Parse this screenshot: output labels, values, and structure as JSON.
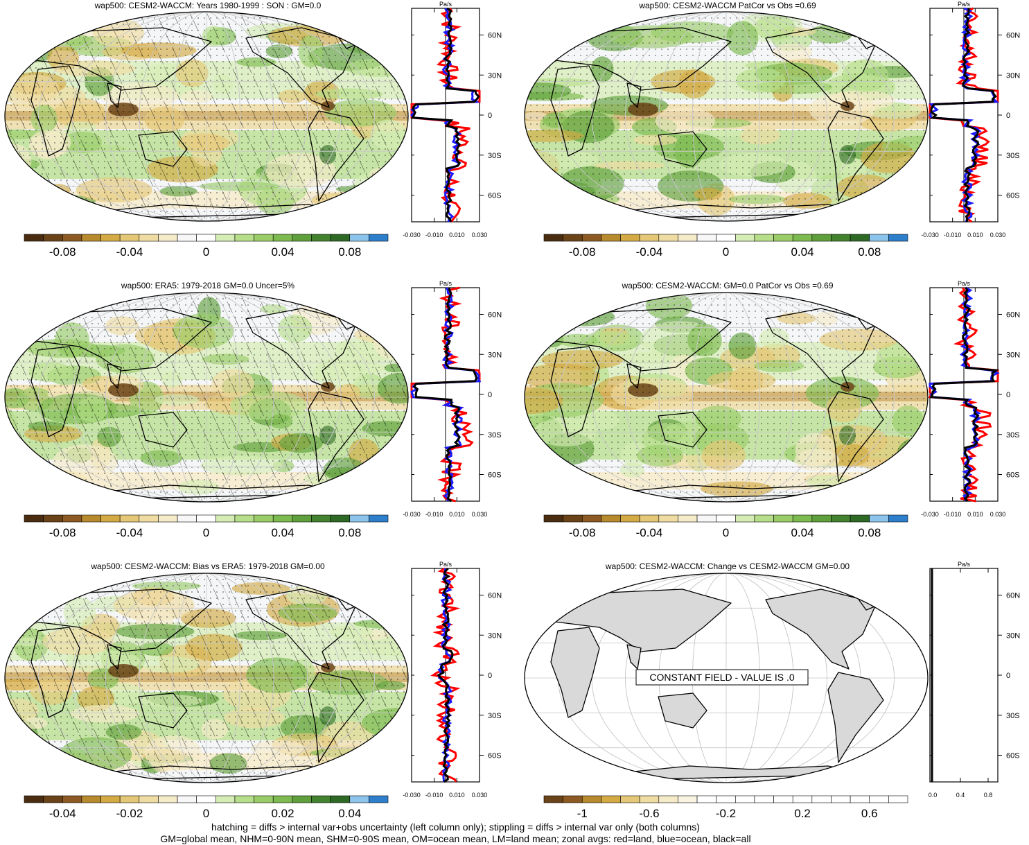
{
  "panels": [
    {
      "title": "wap500: CESM2-WACCM: Years 1980-1999 : SON : GM=0.0",
      "hatch": true,
      "constant": false,
      "land": false
    },
    {
      "title": "wap500: CESM2-WACCM PatCor vs Obs =0.69",
      "hatch": false,
      "constant": false,
      "land": false
    },
    {
      "title": "wap500: ERA5: 1979-2018 GM=0.0 Uncer=5%",
      "hatch": true,
      "constant": false,
      "land": false
    },
    {
      "title": "wap500: CESM2-WACCM: GM=0.0 PatCor vs Obs =0.69",
      "hatch": false,
      "constant": false,
      "land": false
    },
    {
      "title": "wap500: CESM2-WACCM: Bias vs ERA5: 1979-2018  GM=0.00",
      "hatch": true,
      "constant": false,
      "land": false
    },
    {
      "title": "wap500: CESM2-WACCM: Change vs CESM2-WACCM GM=0.00",
      "hatch": false,
      "constant": true,
      "land": true,
      "constant_label": "CONSTANT FIELD - VALUE IS .0"
    }
  ],
  "zonal": {
    "units": "Pa/s",
    "lat_labels": [
      "60N",
      "30N",
      "0",
      "30S",
      "60S"
    ],
    "x_labels": [
      "-0.030",
      "-0.010",
      "0.010",
      "0.030"
    ],
    "x_labels_const": [
      "0.0",
      "0.4",
      "0.8"
    ]
  },
  "colorbars": {
    "std": [
      "-0.08",
      "-0.04",
      "0",
      "0.04",
      "0.08"
    ],
    "bias": [
      "-0.04",
      "-0.02",
      "0",
      "0.02",
      "0.04"
    ],
    "change": [
      "-1",
      "-0.6",
      "-0.2",
      "0.2",
      "0.6"
    ],
    "colors": [
      "#4a2d10",
      "#6b4318",
      "#8c5a22",
      "#b88a2e",
      "#d4aa45",
      "#e5c877",
      "#efdca2",
      "#f6ebc9",
      "#f7f7f7",
      "#ffffff",
      "#d5ecb4",
      "#b7de8a",
      "#9acd68",
      "#7dba4f",
      "#5f9f3c",
      "#43822f",
      "#2e6a26",
      "#8cc4ec",
      "#2d7fcc"
    ],
    "change_colors": [
      "#6b4318",
      "#8c5a22",
      "#b88a2e",
      "#d4aa45",
      "#e5c877",
      "#efdca2",
      "#f6ebc9",
      "#faf4e3",
      "#ffffff",
      "#ffffff",
      "#ffffff",
      "#ffffff",
      "#ffffff",
      "#ffffff",
      "#ffffff",
      "#ffffff",
      "#ffffff",
      "#ffffff",
      "#ffffff"
    ]
  },
  "footer": {
    "line1": "hatching = diffs > internal var+obs uncertainty (left column only); stippling = diffs > internal var only (both columns)",
    "line2": "GM=global mean, NHM=0-90N mean, SHM=0-90S mean, OM=ocean mean, LM=land mean; zonal avgs: red=land, blue=ocean, black=all"
  }
}
